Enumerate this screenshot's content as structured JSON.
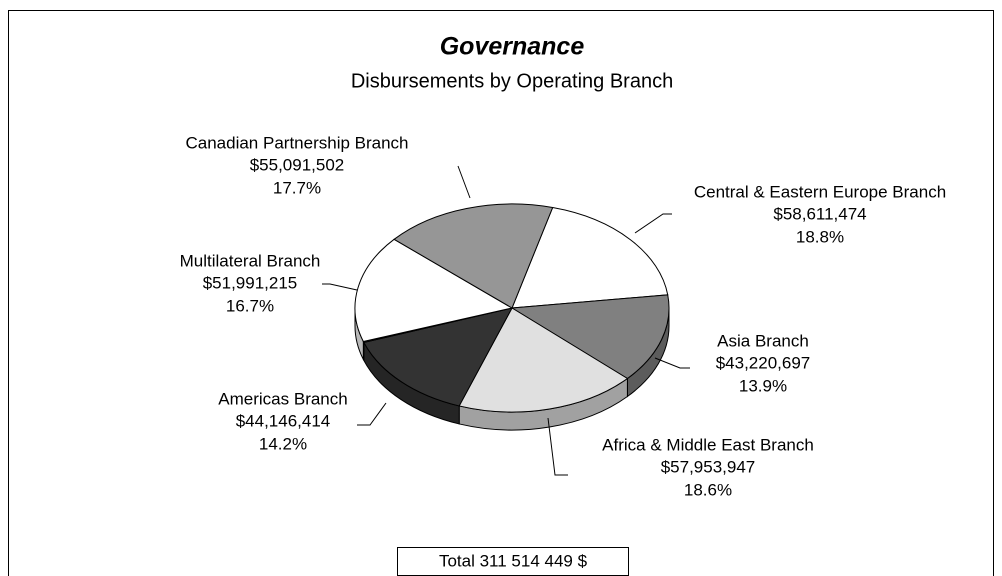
{
  "chart_data": {
    "type": "pie3d",
    "title": "Governance",
    "subtitle": "Disbursements by Operating Branch",
    "categories": [
      "Central & Eastern Europe Branch",
      "Asia Branch",
      "Africa & Middle East Branch",
      "Americas Branch",
      null,
      "Multilateral Branch",
      "Canadian Partnership Branch"
    ],
    "values": [
      58611474,
      43220697,
      57953947,
      44146414,
      499200,
      51991215,
      55091502
    ],
    "value_labels": [
      "$58,611,474",
      "$43,220,697",
      "$57,953,947",
      "$44,146,414",
      null,
      "$51,991,215",
      "$55,091,502"
    ],
    "percent_labels": [
      "18.8%",
      "13.9%",
      "18.6%",
      "14.2%",
      null,
      "16.7%",
      "17.7%"
    ],
    "colors": [
      "#ffffff",
      "#808080",
      "#e0e0e0",
      "#333333",
      "#f2c4be",
      "#ffffff",
      "#969696"
    ],
    "total_label": "Total  311 514 449 $"
  }
}
